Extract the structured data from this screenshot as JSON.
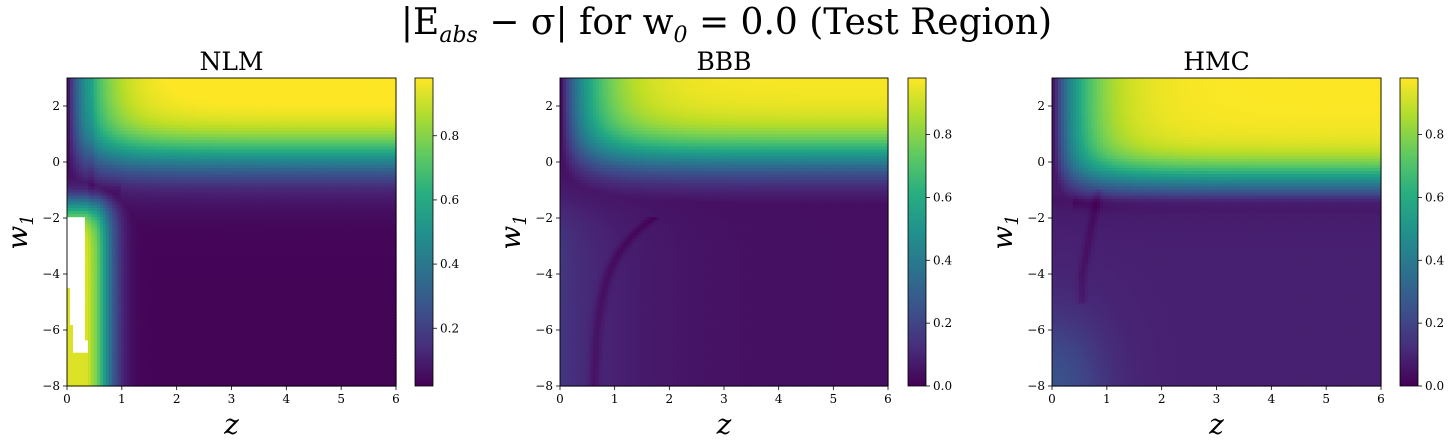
{
  "figure": {
    "title_prefix": "|E",
    "title_sub1": "abs",
    "title_mid": " − σ| for w",
    "title_sub2": "0",
    "title_suffix": " = 0.0 (Test Region)"
  },
  "chart_data": [
    {
      "type": "heatmap",
      "title": "NLM",
      "model": "NLM",
      "xlabel": "z",
      "ylabel": "w1",
      "xlim": [
        0,
        6
      ],
      "ylim": [
        -8,
        3
      ],
      "xticks": [
        0,
        1,
        2,
        3,
        4,
        5,
        6
      ],
      "yticks": [
        2,
        0,
        -2,
        -4,
        -6,
        -8
      ],
      "colormap": "viridis",
      "colorbar_range": [
        0.02,
        0.98
      ],
      "colorbar_ticks": [
        0.2,
        0.4,
        0.6,
        0.8
      ],
      "description_values": [
        {
          "region": "z in [0,6], w1 > 0.5",
          "value": 0.95
        },
        {
          "region": "z in [0.2,0.5], w1 in [-7,-2]",
          "value": 1.0
        },
        {
          "region": "z > 1.5, w1 < -1",
          "value": 0.03
        }
      ]
    },
    {
      "type": "heatmap",
      "title": "BBB",
      "model": "BBB",
      "xlabel": "z",
      "ylabel": "w1",
      "xlim": [
        0,
        6
      ],
      "ylim": [
        -8,
        3
      ],
      "xticks": [
        0,
        1,
        2,
        3,
        4,
        5,
        6
      ],
      "yticks": [
        2,
        0,
        -2,
        -4,
        -6,
        -8
      ],
      "colormap": "viridis",
      "colorbar_range": [
        0.0,
        0.98
      ],
      "colorbar_ticks": [
        0.0,
        0.2,
        0.4,
        0.6,
        0.8
      ],
      "description_values": [
        {
          "region": "z in [0,6], w1 > 0.5",
          "value": 0.95
        },
        {
          "region": "z > 1.5, w1 < -1",
          "value": 0.03
        }
      ]
    },
    {
      "type": "heatmap",
      "title": "HMC",
      "model": "HMC",
      "xlabel": "z",
      "ylabel": "w1",
      "xlim": [
        0,
        6
      ],
      "ylim": [
        -8,
        3
      ],
      "xticks": [
        0,
        1,
        2,
        3,
        4,
        5,
        6
      ],
      "yticks": [
        2,
        0,
        -2,
        -4,
        -6,
        -8
      ],
      "colormap": "viridis",
      "colorbar_range": [
        0.0,
        0.98
      ],
      "colorbar_ticks": [
        0.0,
        0.2,
        0.4,
        0.6,
        0.8
      ],
      "description_values": [
        {
          "region": "z in [0,6], w1 > 0.5",
          "value": 0.95
        },
        {
          "region": "z in [0,1], w1 in [-8,-6]",
          "value": 0.22
        },
        {
          "region": "z > 1.5, w1 < -1",
          "value": 0.05
        }
      ]
    }
  ]
}
